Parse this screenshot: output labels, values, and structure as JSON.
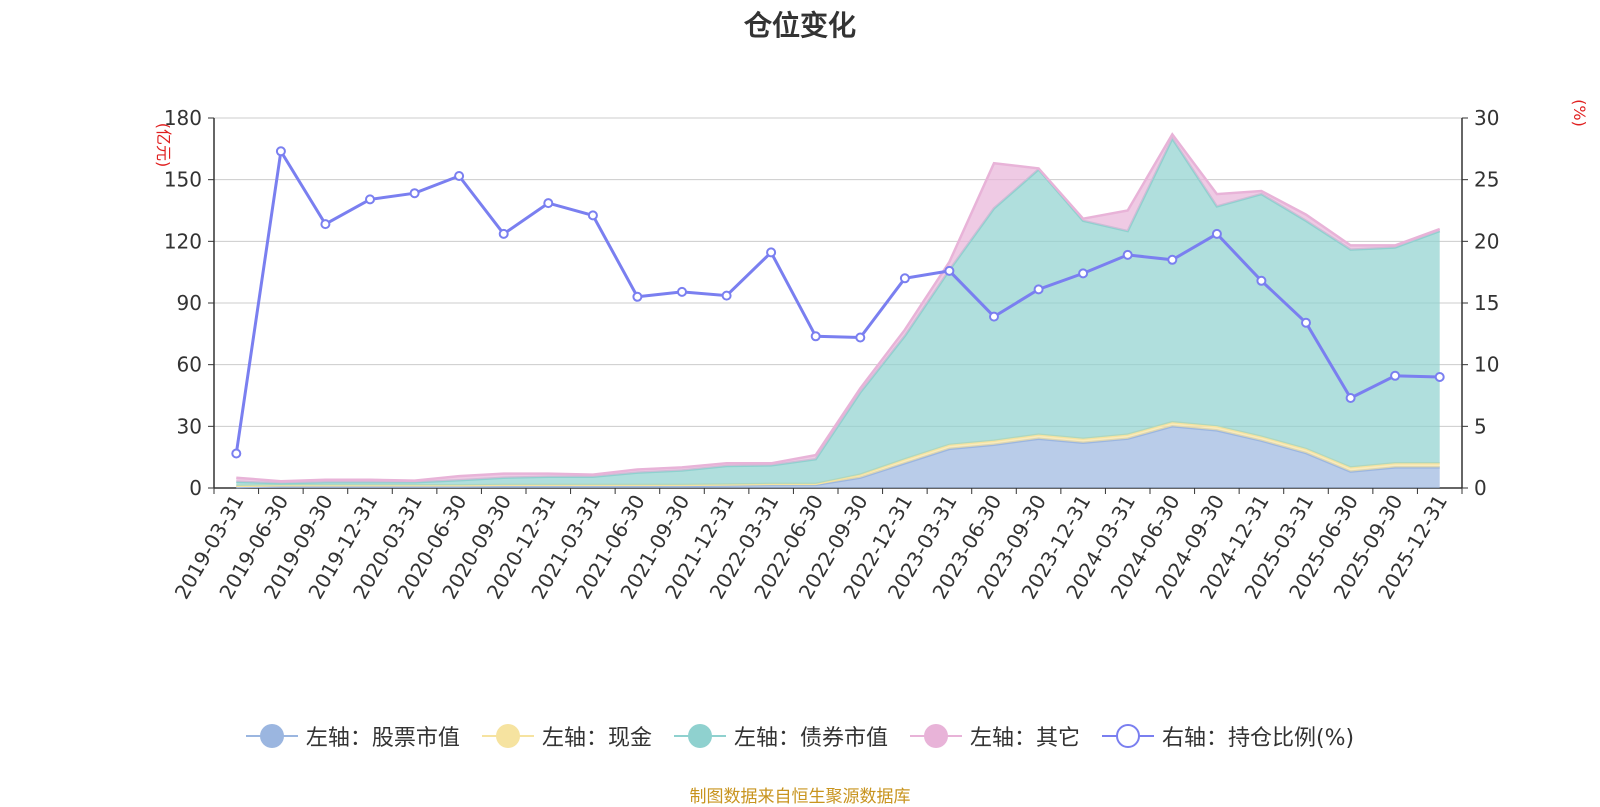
{
  "chart_data": {
    "type": "area",
    "title": "仓位变化",
    "y_left_label": "(亿元)",
    "y_right_label": "(%)",
    "y_left_range": [
      0,
      180
    ],
    "y_left_ticks": [
      0,
      30,
      60,
      90,
      120,
      150,
      180
    ],
    "y_right_range": [
      0,
      30
    ],
    "y_right_ticks": [
      0,
      5,
      10,
      15,
      20,
      25,
      30
    ],
    "categories": [
      "2019-03-31",
      "2019-06-30",
      "2019-09-30",
      "2019-12-31",
      "2020-03-31",
      "2020-06-30",
      "2020-09-30",
      "2020-12-31",
      "2021-03-31",
      "2021-06-30",
      "2021-09-30",
      "2021-12-31",
      "2022-03-31",
      "2022-06-30",
      "2022-09-30",
      "2022-12-31",
      "2023-03-31",
      "2023-06-30",
      "2023-09-30",
      "2023-12-31",
      "2024-03-31",
      "2024-06-30",
      "2024-09-30",
      "2024-12-31",
      "2025-03-31",
      "2025-06-30",
      "2025-09-30",
      "2025-12-31"
    ],
    "series": [
      {
        "name": "左轴：股票市值",
        "color": "#9bb6e0",
        "axis": "left",
        "type": "area",
        "values": [
          0.5,
          0.8,
          0.8,
          0.8,
          0.8,
          0.8,
          1,
          1,
          1,
          1,
          1,
          1.2,
          1.5,
          1.5,
          5,
          12,
          19,
          21,
          24,
          22,
          24,
          30,
          28,
          23,
          17,
          8,
          10,
          10
        ]
      },
      {
        "name": "左轴：现金",
        "color": "#f6e3a0",
        "axis": "left",
        "type": "area",
        "values": [
          0.5,
          0.5,
          0.5,
          0.5,
          0.5,
          0.5,
          0.5,
          0.5,
          0.5,
          0.5,
          0.5,
          0.5,
          0.5,
          0.5,
          1.5,
          2,
          2,
          2,
          2,
          2,
          2,
          2,
          2,
          2,
          2,
          2,
          2,
          2
        ]
      },
      {
        "name": "左轴：债券市值",
        "color": "#8fd1cf",
        "axis": "left",
        "type": "area",
        "values": [
          2,
          1,
          1.5,
          1.5,
          1.5,
          2.5,
          3.5,
          4,
          4,
          6,
          7,
          9,
          9,
          12,
          40,
          60,
          85,
          113,
          129,
          106,
          99,
          138,
          107,
          118,
          111,
          106,
          105,
          113
        ]
      },
      {
        "name": "左轴：其它",
        "color": "#e8b3d8",
        "axis": "left",
        "type": "area",
        "values": [
          2,
          1,
          1.2,
          1.2,
          0.8,
          2,
          2,
          1.5,
          1,
          1.5,
          1.5,
          1.3,
          1,
          2,
          2,
          3,
          4,
          22,
          0.5,
          1,
          10,
          2,
          6,
          1.5,
          3,
          2,
          1,
          1
        ]
      },
      {
        "name": "右轴：持仓比例(%)",
        "color": "#7a7ff0",
        "axis": "right",
        "type": "line",
        "values": [
          2.8,
          27.3,
          21.4,
          23.4,
          23.9,
          25.3,
          20.6,
          23.1,
          22.1,
          15.5,
          15.9,
          15.6,
          19.1,
          12.3,
          12.2,
          17.0,
          17.6,
          13.9,
          16.1,
          17.4,
          18.9,
          18.5,
          20.6,
          16.8,
          13.4,
          7.3,
          9.1,
          9.0
        ]
      }
    ]
  },
  "legend": [
    {
      "label": "左轴：股票市值",
      "color": "#9bb6e0",
      "style": "filled"
    },
    {
      "label": "左轴：现金",
      "color": "#f6e3a0",
      "style": "filled"
    },
    {
      "label": "左轴：债券市值",
      "color": "#8fd1cf",
      "style": "filled"
    },
    {
      "label": "左轴：其它",
      "color": "#e8b3d8",
      "style": "filled"
    },
    {
      "label": "右轴：持仓比例(%)",
      "color": "#7a7ff0",
      "style": "hollow"
    }
  ],
  "source_note": "制图数据来自恒生聚源数据库"
}
